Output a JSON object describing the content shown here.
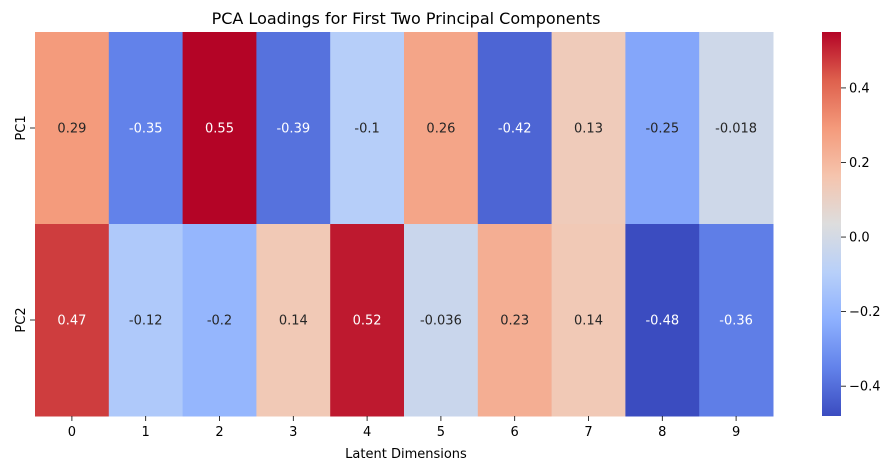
{
  "chart_data": {
    "type": "heatmap",
    "title": "PCA Loadings for First Two Principal Components",
    "xlabel": "Latent Dimensions",
    "ylabel": "",
    "x_categories": [
      "0",
      "1",
      "2",
      "3",
      "4",
      "5",
      "6",
      "7",
      "8",
      "9"
    ],
    "y_categories": [
      "PC1",
      "PC2"
    ],
    "values": [
      [
        0.29,
        -0.35,
        0.55,
        -0.39,
        -0.1,
        0.26,
        -0.42,
        0.13,
        -0.25,
        -0.018
      ],
      [
        0.47,
        -0.12,
        -0.2,
        0.14,
        0.52,
        -0.036,
        0.23,
        0.14,
        -0.48,
        -0.36
      ]
    ],
    "annotations": [
      [
        "0.29",
        "-0.35",
        "0.55",
        "-0.39",
        "-0.1",
        "0.26",
        "-0.42",
        "0.13",
        "-0.25",
        "-0.018"
      ],
      [
        "0.47",
        "-0.12",
        "-0.2",
        "0.14",
        "0.52",
        "-0.036",
        "0.23",
        "0.14",
        "-0.48",
        "-0.36"
      ]
    ],
    "colormap": "coolwarm",
    "vmin": -0.48,
    "vmax": 0.55,
    "colorbar_ticks": [
      0.4,
      0.2,
      0.0,
      -0.2,
      -0.4
    ],
    "colorbar_tick_labels": [
      "0.4",
      "0.2",
      "0.0",
      "−0.2",
      "−0.4"
    ],
    "legend": "colorbar-right"
  }
}
